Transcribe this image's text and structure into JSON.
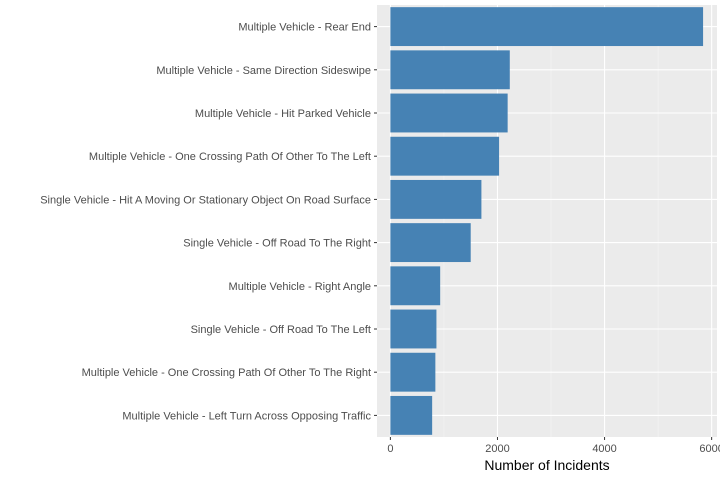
{
  "chart_data": {
    "type": "bar",
    "orientation": "horizontal",
    "categories": [
      "Multiple Vehicle - Rear End",
      "Multiple Vehicle - Same Direction Sideswipe",
      "Multiple Vehicle - Hit Parked Vehicle",
      "Multiple Vehicle - One Crossing Path Of Other To The Left",
      "Single Vehicle - Hit A Moving Or Stationary Object On Road Surface",
      "Single Vehicle - Off Road To The Right",
      "Multiple Vehicle - Right Angle",
      "Single Vehicle - Off Road To The Left",
      "Multiple Vehicle - One Crossing Path Of Other To The Right",
      "Multiple Vehicle - Left Turn Across Opposing Traffic"
    ],
    "values": [
      5840,
      2230,
      2190,
      2030,
      1700,
      1500,
      930,
      860,
      840,
      780
    ],
    "xlabel": "Number of Incidents",
    "ylabel": "",
    "xlim": [
      -250,
      6100
    ],
    "x_ticks": [
      0,
      2000,
      4000,
      6000
    ],
    "grid": true,
    "colors": {
      "bar": "#4682B4",
      "panel": "#EBEBEB",
      "grid_major": "#FFFFFF",
      "grid_minor": "#F5F5F5",
      "tick_text": "#4D4D4D",
      "tick_mark": "#333333"
    }
  }
}
